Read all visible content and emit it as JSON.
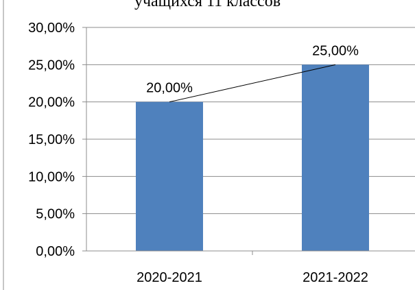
{
  "chart_data": {
    "type": "bar",
    "title": "учащихся 11 классов",
    "categories": [
      "2020-2021",
      "2021-2022"
    ],
    "values": [
      20,
      25
    ],
    "data_labels": [
      "20,00%",
      "25,00%"
    ],
    "ylim": [
      0,
      30
    ],
    "yticks": [
      0,
      5,
      10,
      15,
      20,
      25,
      30
    ],
    "ytick_labels": [
      "0,00%",
      "5,00%",
      "10,00%",
      "15,00%",
      "20,00%",
      "25,00%",
      "30,00%"
    ],
    "xlabel": "",
    "ylabel": "",
    "grid": true,
    "trendline": true,
    "colors": {
      "bar": "#4f81bd",
      "grid": "#8c8c8c",
      "axis": "#8c8c8c",
      "trendline": "#000000"
    }
  }
}
